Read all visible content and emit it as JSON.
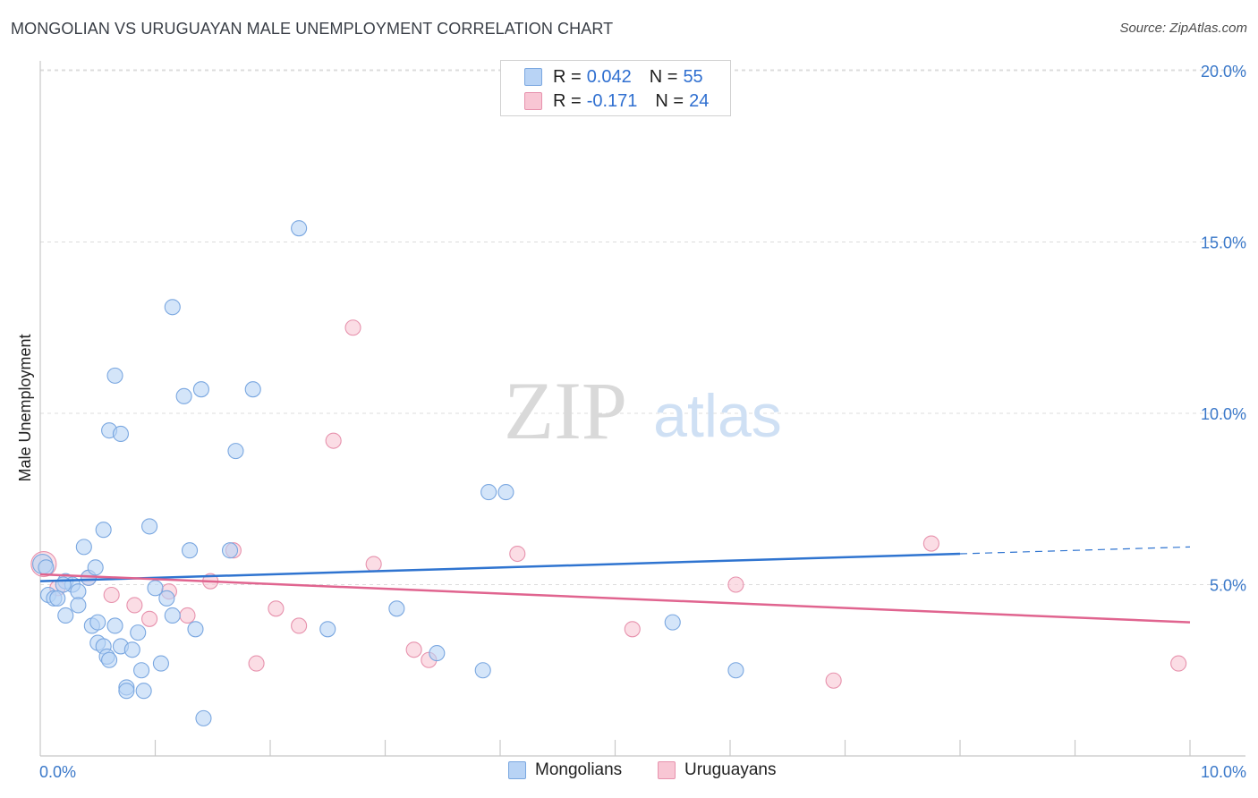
{
  "header": {
    "title": "MONGOLIAN VS URUGUAYAN MALE UNEMPLOYMENT CORRELATION CHART",
    "source": "Source: ZipAtlas.com"
  },
  "watermark": {
    "zip": "ZIP",
    "atlas": "atlas"
  },
  "stats_legend": {
    "rows": [
      {
        "r_label": "R =",
        "r_value": "0.042",
        "n_label": "N =",
        "n_value": "55"
      },
      {
        "r_label": "R =",
        "r_value": "-0.171",
        "n_label": "N =",
        "n_value": "24"
      }
    ]
  },
  "bottom_legend": {
    "items": [
      "Mongolians",
      "Uruguayans"
    ]
  },
  "colors": {
    "mongolians_fill": "#b8d3f5",
    "mongolians_stroke": "#7aa7e0",
    "mongolians_line": "#2f74d0",
    "uruguayans_fill": "#f8c6d4",
    "uruguayans_stroke": "#e792ad",
    "uruguayans_line": "#e0648f",
    "axis_label": "#3a78c9",
    "grid": "#dcdcdc"
  },
  "chart_data": {
    "type": "scatter",
    "title": "MONGOLIAN VS URUGUAYAN MALE UNEMPLOYMENT CORRELATION CHART",
    "xlabel": "",
    "ylabel": "Male Unemployment",
    "xlim": [
      0,
      10
    ],
    "ylim": [
      0,
      20
    ],
    "x_tick_labels": [
      "0.0%",
      "10.0%"
    ],
    "y_ticks": [
      5,
      10,
      15,
      20
    ],
    "y_tick_labels": [
      "5.0%",
      "10.0%",
      "15.0%",
      "20.0%"
    ],
    "grid": true,
    "legend_position": "top-center",
    "series": [
      {
        "name": "Mongolians",
        "r": 0.042,
        "n": 55,
        "trend": {
          "x": [
            0,
            8
          ],
          "y": [
            5.1,
            5.9
          ],
          "dashed_extension_to_x": 10
        },
        "points": [
          [
            0.02,
            5.6
          ],
          [
            0.05,
            5.5
          ],
          [
            0.07,
            4.7
          ],
          [
            0.12,
            4.6
          ],
          [
            0.15,
            4.6
          ],
          [
            0.22,
            5.1
          ],
          [
            0.28,
            5.0
          ],
          [
            0.33,
            4.8
          ],
          [
            0.38,
            6.1
          ],
          [
            0.42,
            5.2
          ],
          [
            0.22,
            4.1
          ],
          [
            0.33,
            4.4
          ],
          [
            0.45,
            3.8
          ],
          [
            0.48,
            5.5
          ],
          [
            0.5,
            3.9
          ],
          [
            0.5,
            3.3
          ],
          [
            0.55,
            3.2
          ],
          [
            0.58,
            2.9
          ],
          [
            0.6,
            2.8
          ],
          [
            0.65,
            3.8
          ],
          [
            0.7,
            3.2
          ],
          [
            0.75,
            2.0
          ],
          [
            0.75,
            1.9
          ],
          [
            0.8,
            3.1
          ],
          [
            0.85,
            3.6
          ],
          [
            0.88,
            2.5
          ],
          [
            0.9,
            1.9
          ],
          [
            0.95,
            6.7
          ],
          [
            1.0,
            4.9
          ],
          [
            1.05,
            2.7
          ],
          [
            1.1,
            4.6
          ],
          [
            1.15,
            4.1
          ],
          [
            1.3,
            6.0
          ],
          [
            1.35,
            3.7
          ],
          [
            1.42,
            1.1
          ],
          [
            1.7,
            8.9
          ],
          [
            1.25,
            10.5
          ],
          [
            1.4,
            10.7
          ],
          [
            1.85,
            10.7
          ],
          [
            0.65,
            11.1
          ],
          [
            0.6,
            9.5
          ],
          [
            0.7,
            9.4
          ],
          [
            1.15,
            13.1
          ],
          [
            2.25,
            15.4
          ],
          [
            2.5,
            3.7
          ],
          [
            3.1,
            4.3
          ],
          [
            3.45,
            3.0
          ],
          [
            3.85,
            2.5
          ],
          [
            3.9,
            7.7
          ],
          [
            4.05,
            7.7
          ],
          [
            5.5,
            3.9
          ],
          [
            6.05,
            2.5
          ],
          [
            1.65,
            6.0
          ],
          [
            0.55,
            6.6
          ],
          [
            0.2,
            5.0
          ]
        ]
      },
      {
        "name": "Uruguayans",
        "r": -0.171,
        "n": 24,
        "trend": {
          "x": [
            0,
            10
          ],
          "y": [
            5.3,
            3.9
          ]
        },
        "points": [
          [
            0.03,
            5.6
          ],
          [
            0.15,
            4.9
          ],
          [
            0.42,
            5.2
          ],
          [
            0.62,
            4.7
          ],
          [
            0.82,
            4.4
          ],
          [
            0.95,
            4.0
          ],
          [
            1.12,
            4.8
          ],
          [
            1.28,
            4.1
          ],
          [
            1.48,
            5.1
          ],
          [
            1.68,
            6.0
          ],
          [
            1.88,
            2.7
          ],
          [
            2.05,
            4.3
          ],
          [
            2.25,
            3.8
          ],
          [
            2.55,
            9.2
          ],
          [
            2.72,
            12.5
          ],
          [
            2.9,
            5.6
          ],
          [
            3.25,
            3.1
          ],
          [
            3.38,
            2.8
          ],
          [
            4.15,
            5.9
          ],
          [
            5.15,
            3.7
          ],
          [
            6.05,
            5.0
          ],
          [
            6.9,
            2.2
          ],
          [
            7.75,
            6.2
          ],
          [
            9.9,
            2.7
          ]
        ]
      }
    ]
  }
}
